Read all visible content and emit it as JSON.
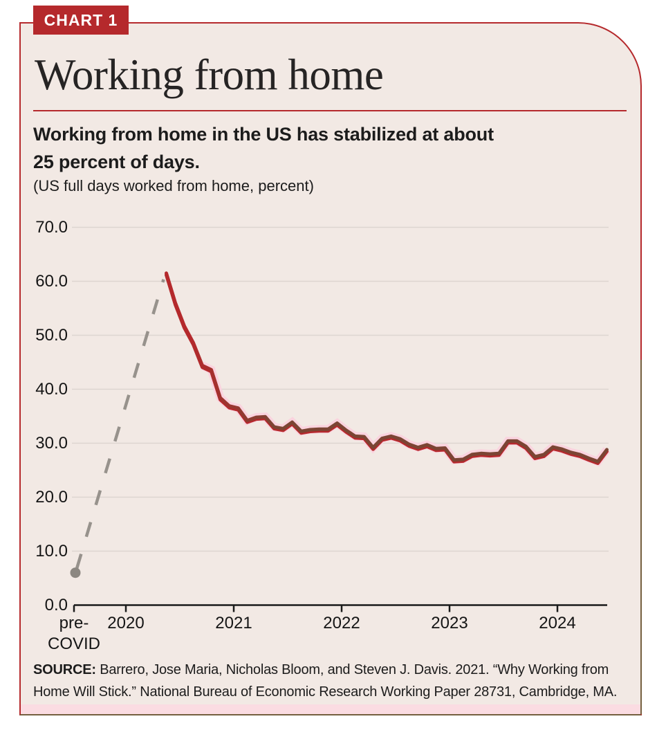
{
  "badge": {
    "label": "CHART 1"
  },
  "title": "Working from home",
  "subtitle_lines": [
    "Working from home in the US has stabilized at about",
    "25 percent of days."
  ],
  "axis_note": "(US full days worked from home, percent)",
  "source": {
    "label": "SOURCE:",
    "line1": "Barrero, Jose Maria, Nicholas Bloom, and Steven J. Davis. 2021. “Why Working from Home",
    "line2": "Will Stick.” National Bureau of Economic Research Working Paper 28731, Cambridge, MA."
  },
  "colors": {
    "accent_red": "#b5292c",
    "line_red": "#b4292c",
    "line_dark": "#7b4534",
    "halo_pink": "#fbd0dd",
    "dashed_gray": "#97928c",
    "dot_gray": "#8c8781",
    "card_background": "#f2e9e4",
    "grid": "#ddd5d0",
    "axis_black": "#1a1a1a",
    "bottom_strip_pink": "#fbdce2",
    "border_bottom_brown": "#75603f"
  },
  "chart_data": {
    "type": "line",
    "title": "Working from home",
    "subtitle": "Working from home in the US has stabilized at about 25 percent of days.",
    "ylabel": "(US full days worked from home, percent)",
    "ylim": [
      0,
      70
    ],
    "grid": "horizontal",
    "legend": "none",
    "ytick_values": [
      0,
      10,
      20,
      30,
      40,
      50,
      60,
      70
    ],
    "ytick_labels": [
      "0.0",
      "10.0",
      "20.0",
      "30.0",
      "40.0",
      "50.0",
      "60.0",
      "70.0"
    ],
    "xtick_labels": [
      "pre-\nCOVID",
      "2020",
      "2021",
      "2022",
      "2023",
      "2024"
    ],
    "pre_covid": {
      "label": "pre-COVID",
      "value": 6.0
    },
    "connector": {
      "style": "dashed",
      "from": "pre-COVID point",
      "to": "May 2020 peak"
    },
    "series": [
      {
        "name": "US full days worked from home, percent",
        "frequency": "monthly",
        "start_month": "2020-05",
        "end_month": "2024-06",
        "peak": {
          "month": "2020-05",
          "value": 61.5
        },
        "values": [
          61.5,
          56.0,
          51.7,
          48.6,
          44.4,
          43.6,
          38.4,
          36.9,
          36.5,
          34.2,
          34.8,
          34.9,
          33.0,
          32.7,
          33.9,
          32.2,
          32.5,
          32.6,
          32.6,
          33.7,
          32.4,
          31.3,
          31.2,
          29.2,
          30.9,
          31.3,
          30.8,
          29.8,
          29.2,
          29.7,
          29.0,
          29.1,
          26.9,
          27.0,
          27.9,
          28.1,
          28.0,
          28.1,
          30.4,
          30.4,
          29.4,
          27.5,
          27.9,
          29.3,
          28.9,
          28.3,
          27.9,
          27.2,
          26.6,
          28.8
        ]
      }
    ]
  }
}
